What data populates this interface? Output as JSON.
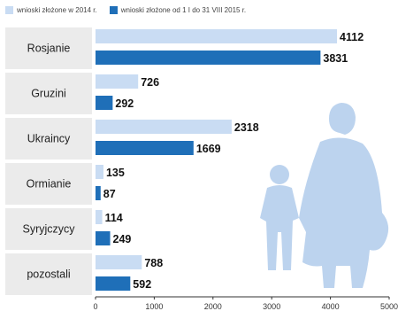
{
  "chart_data": {
    "type": "bar",
    "orientation": "horizontal",
    "categories": [
      "Rosjanie",
      "Gruzini",
      "Ukraincy",
      "Ormianie",
      "Syryjczycy",
      "pozostali"
    ],
    "series": [
      {
        "name": "wnioski złożone w 2014 r.",
        "values": [
          4112,
          726,
          2318,
          135,
          114,
          788
        ],
        "color": "#c9dcf3"
      },
      {
        "name": "wnioski złożone od 1 I do 31 VIII 2015 r.",
        "values": [
          3831,
          292,
          1669,
          87,
          249,
          592
        ],
        "color": "#1f6fb8"
      }
    ],
    "xlim": [
      0,
      5000
    ],
    "xticks": [
      "0",
      "1000",
      "2000",
      "3000",
      "4000",
      "5000"
    ],
    "legend_position": "top-left",
    "grid": false
  },
  "colors": {
    "category_band": "#ebebeb",
    "silhouette": "#bcd3ee"
  },
  "icons": {
    "background_illustration": "mother-and-child-silhouette-icon"
  }
}
